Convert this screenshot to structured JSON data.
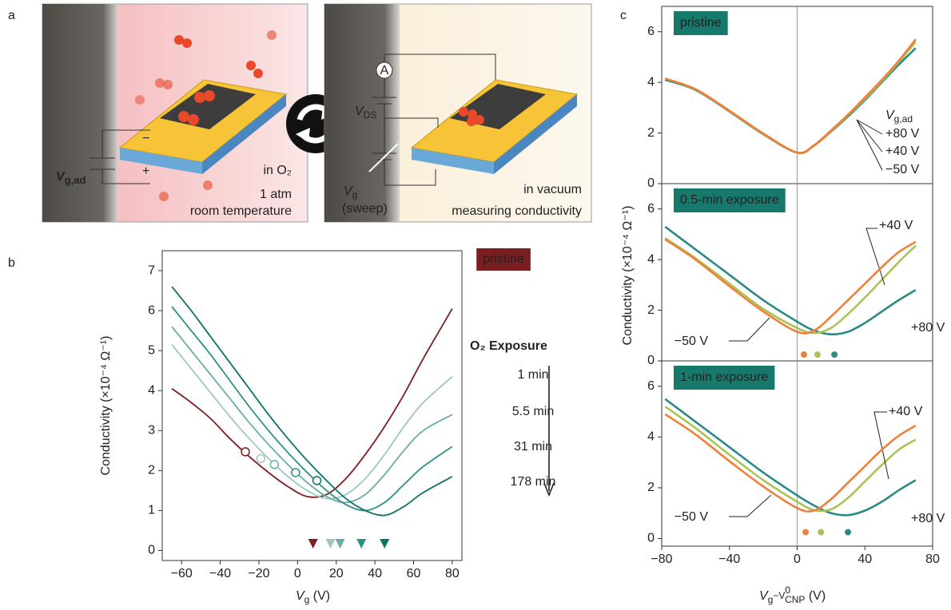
{
  "panel_labels": [
    "a",
    "b",
    "c"
  ],
  "diagram": {
    "left": {
      "vg_ad": {
        "main": "V",
        "sub": "g,ad"
      },
      "minus": "−",
      "plus": "+",
      "env": "in O₂",
      "pressure": "1 atm",
      "temperature": "room temperature"
    },
    "right": {
      "ammeter": "A",
      "vds": {
        "main": "V",
        "sub": "DS"
      },
      "vg": {
        "main": "V",
        "sub": "g"
      },
      "sweep": "(sweep)",
      "env": "in vacuum",
      "task": "measuring conductivity"
    }
  },
  "chart_data": [
    {
      "type": "line",
      "ylabel": "Conductivity (×10⁻⁴ Ω⁻¹)",
      "xlabel": [
        "V",
        "g",
        " (V)"
      ],
      "legend_title": "O₂ Exposure",
      "x": [
        -65,
        -55,
        -45,
        -35,
        -25,
        -15,
        -5,
        5,
        15,
        25,
        35,
        45,
        55,
        65,
        80
      ],
      "xlim": [
        -70,
        85
      ],
      "ylim": [
        -0.25,
        7.5
      ],
      "xticks": [
        {
          "value": -60,
          "label": "−60"
        },
        {
          "value": -40,
          "label": "−40"
        },
        {
          "value": -20,
          "label": "−20"
        },
        0,
        20,
        40,
        60,
        80
      ],
      "yticks": [
        0,
        1,
        2,
        3,
        4,
        5,
        6,
        7
      ],
      "series": [
        {
          "name": "pristine",
          "color": "#7b1e22",
          "values": [
            4.05,
            3.7,
            3.3,
            2.8,
            2.35,
            1.95,
            1.6,
            1.35,
            1.4,
            1.8,
            2.4,
            3.1,
            3.9,
            4.8,
            6.05
          ],
          "marker_x": -27,
          "marker_y": 2.47,
          "cnp": 8
        },
        {
          "name": "1 min",
          "color": "#9cc8c2",
          "values": [
            5.15,
            4.55,
            3.95,
            3.35,
            2.8,
            2.3,
            1.85,
            1.5,
            1.3,
            1.4,
            1.8,
            2.4,
            3.1,
            3.7,
            4.35
          ],
          "marker_x": -19,
          "marker_y": 2.3,
          "cnp": 17
        },
        {
          "name": "5.5 min",
          "color": "#6aada5",
          "values": [
            5.6,
            5.0,
            4.4,
            3.8,
            3.2,
            2.65,
            2.15,
            1.7,
            1.35,
            1.2,
            1.4,
            1.9,
            2.5,
            3.0,
            3.4
          ],
          "marker_x": -12,
          "marker_y": 2.15,
          "cnp": 22
        },
        {
          "name": "31 min",
          "color": "#2b9085",
          "values": [
            6.1,
            5.5,
            4.9,
            4.25,
            3.6,
            3.0,
            2.45,
            1.95,
            1.5,
            1.15,
            1.0,
            1.2,
            1.65,
            2.1,
            2.6
          ],
          "marker_x": -1,
          "marker_y": 1.95,
          "cnp": 33
        },
        {
          "name": "178 min",
          "color": "#0c7166",
          "values": [
            6.6,
            6.0,
            5.35,
            4.7,
            4.05,
            3.4,
            2.8,
            2.25,
            1.75,
            1.3,
            1.0,
            0.88,
            1.1,
            1.45,
            1.85
          ],
          "marker_x": 10,
          "marker_y": 1.75,
          "cnp": 45
        }
      ]
    },
    {
      "type": "line",
      "title": "pristine",
      "ylabel": "Conductivity (×10⁻⁴ Ω⁻¹)",
      "legend_title": [
        "V",
        "g,ad"
      ],
      "x": [
        -78,
        -60,
        -40,
        -20,
        0,
        10,
        20,
        30,
        40,
        50,
        60,
        70
      ],
      "xlim": [
        -80,
        80
      ],
      "ylim": [
        0,
        7
      ],
      "yticks": [
        0,
        2,
        4,
        6
      ],
      "vline": 0,
      "series": [
        {
          "name": "+80 V",
          "color": "#2a8a85",
          "values": [
            4.1,
            3.7,
            2.85,
            1.95,
            1.22,
            1.5,
            2.05,
            2.65,
            3.3,
            4.0,
            4.7,
            5.35
          ]
        },
        {
          "name": "+40 V",
          "color": "#a8c454",
          "values": [
            4.15,
            3.72,
            2.87,
            1.97,
            1.22,
            1.5,
            2.07,
            2.7,
            3.35,
            4.05,
            4.8,
            5.6
          ]
        },
        {
          "name": "−50 V",
          "color": "#f07f3a",
          "values": [
            4.15,
            3.73,
            2.88,
            1.98,
            1.23,
            1.52,
            2.1,
            2.72,
            3.4,
            4.1,
            4.85,
            5.7
          ]
        }
      ]
    },
    {
      "type": "line",
      "title": "0.5-min exposure",
      "x": [
        -78,
        -60,
        -40,
        -20,
        0,
        10,
        20,
        30,
        40,
        50,
        60,
        70
      ],
      "xlim": [
        -80,
        80
      ],
      "ylim": [
        0,
        7
      ],
      "yticks": [
        0,
        2,
        4,
        6
      ],
      "vline": 0,
      "series": [
        {
          "name": "+80 V",
          "color": "#2a8a85",
          "values": [
            5.3,
            4.4,
            3.4,
            2.4,
            1.55,
            1.2,
            1.05,
            1.15,
            1.5,
            1.95,
            2.4,
            2.8
          ],
          "cnp": 22
        },
        {
          "name": "+40 V",
          "color": "#a8c454",
          "values": [
            4.85,
            4.05,
            3.05,
            2.05,
            1.3,
            1.1,
            1.3,
            1.85,
            2.5,
            3.2,
            3.9,
            4.55
          ],
          "cnp": 12
        },
        {
          "name": "−50 V",
          "color": "#f07f3a",
          "values": [
            4.8,
            4.0,
            2.95,
            1.95,
            1.15,
            1.2,
            1.75,
            2.4,
            3.05,
            3.7,
            4.3,
            4.7
          ],
          "cnp": 4
        }
      ]
    },
    {
      "type": "line",
      "title": "1-min exposure",
      "xlabel": [
        "V",
        "g",
        "−V",
        "0",
        "CNP",
        " (V)"
      ],
      "x": [
        -78,
        -60,
        -40,
        -20,
        0,
        10,
        20,
        30,
        40,
        50,
        60,
        70
      ],
      "xlim": [
        -80,
        80
      ],
      "ylim": [
        -0.3,
        7
      ],
      "yticks": [
        0,
        2,
        4,
        6
      ],
      "vline": 0,
      "xticks": [
        {
          "value": -80,
          "label": "−80"
        },
        {
          "value": -40,
          "label": "−40"
        },
        0,
        40,
        80
      ],
      "series": [
        {
          "name": "+80 V",
          "color": "#2a8a85",
          "values": [
            5.5,
            4.6,
            3.6,
            2.6,
            1.7,
            1.3,
            1.0,
            0.92,
            1.1,
            1.45,
            1.9,
            2.3
          ],
          "cnp": 30
        },
        {
          "name": "+40 V",
          "color": "#a8c454",
          "values": [
            5.2,
            4.35,
            3.3,
            2.3,
            1.45,
            1.12,
            1.15,
            1.6,
            2.25,
            2.9,
            3.5,
            3.9
          ],
          "cnp": 14
        },
        {
          "name": "−50 V",
          "color": "#f07f3a",
          "values": [
            4.9,
            4.1,
            3.05,
            2.05,
            1.2,
            1.1,
            1.55,
            2.2,
            2.85,
            3.5,
            4.05,
            4.45
          ],
          "cnp": 5
        }
      ]
    }
  ]
}
